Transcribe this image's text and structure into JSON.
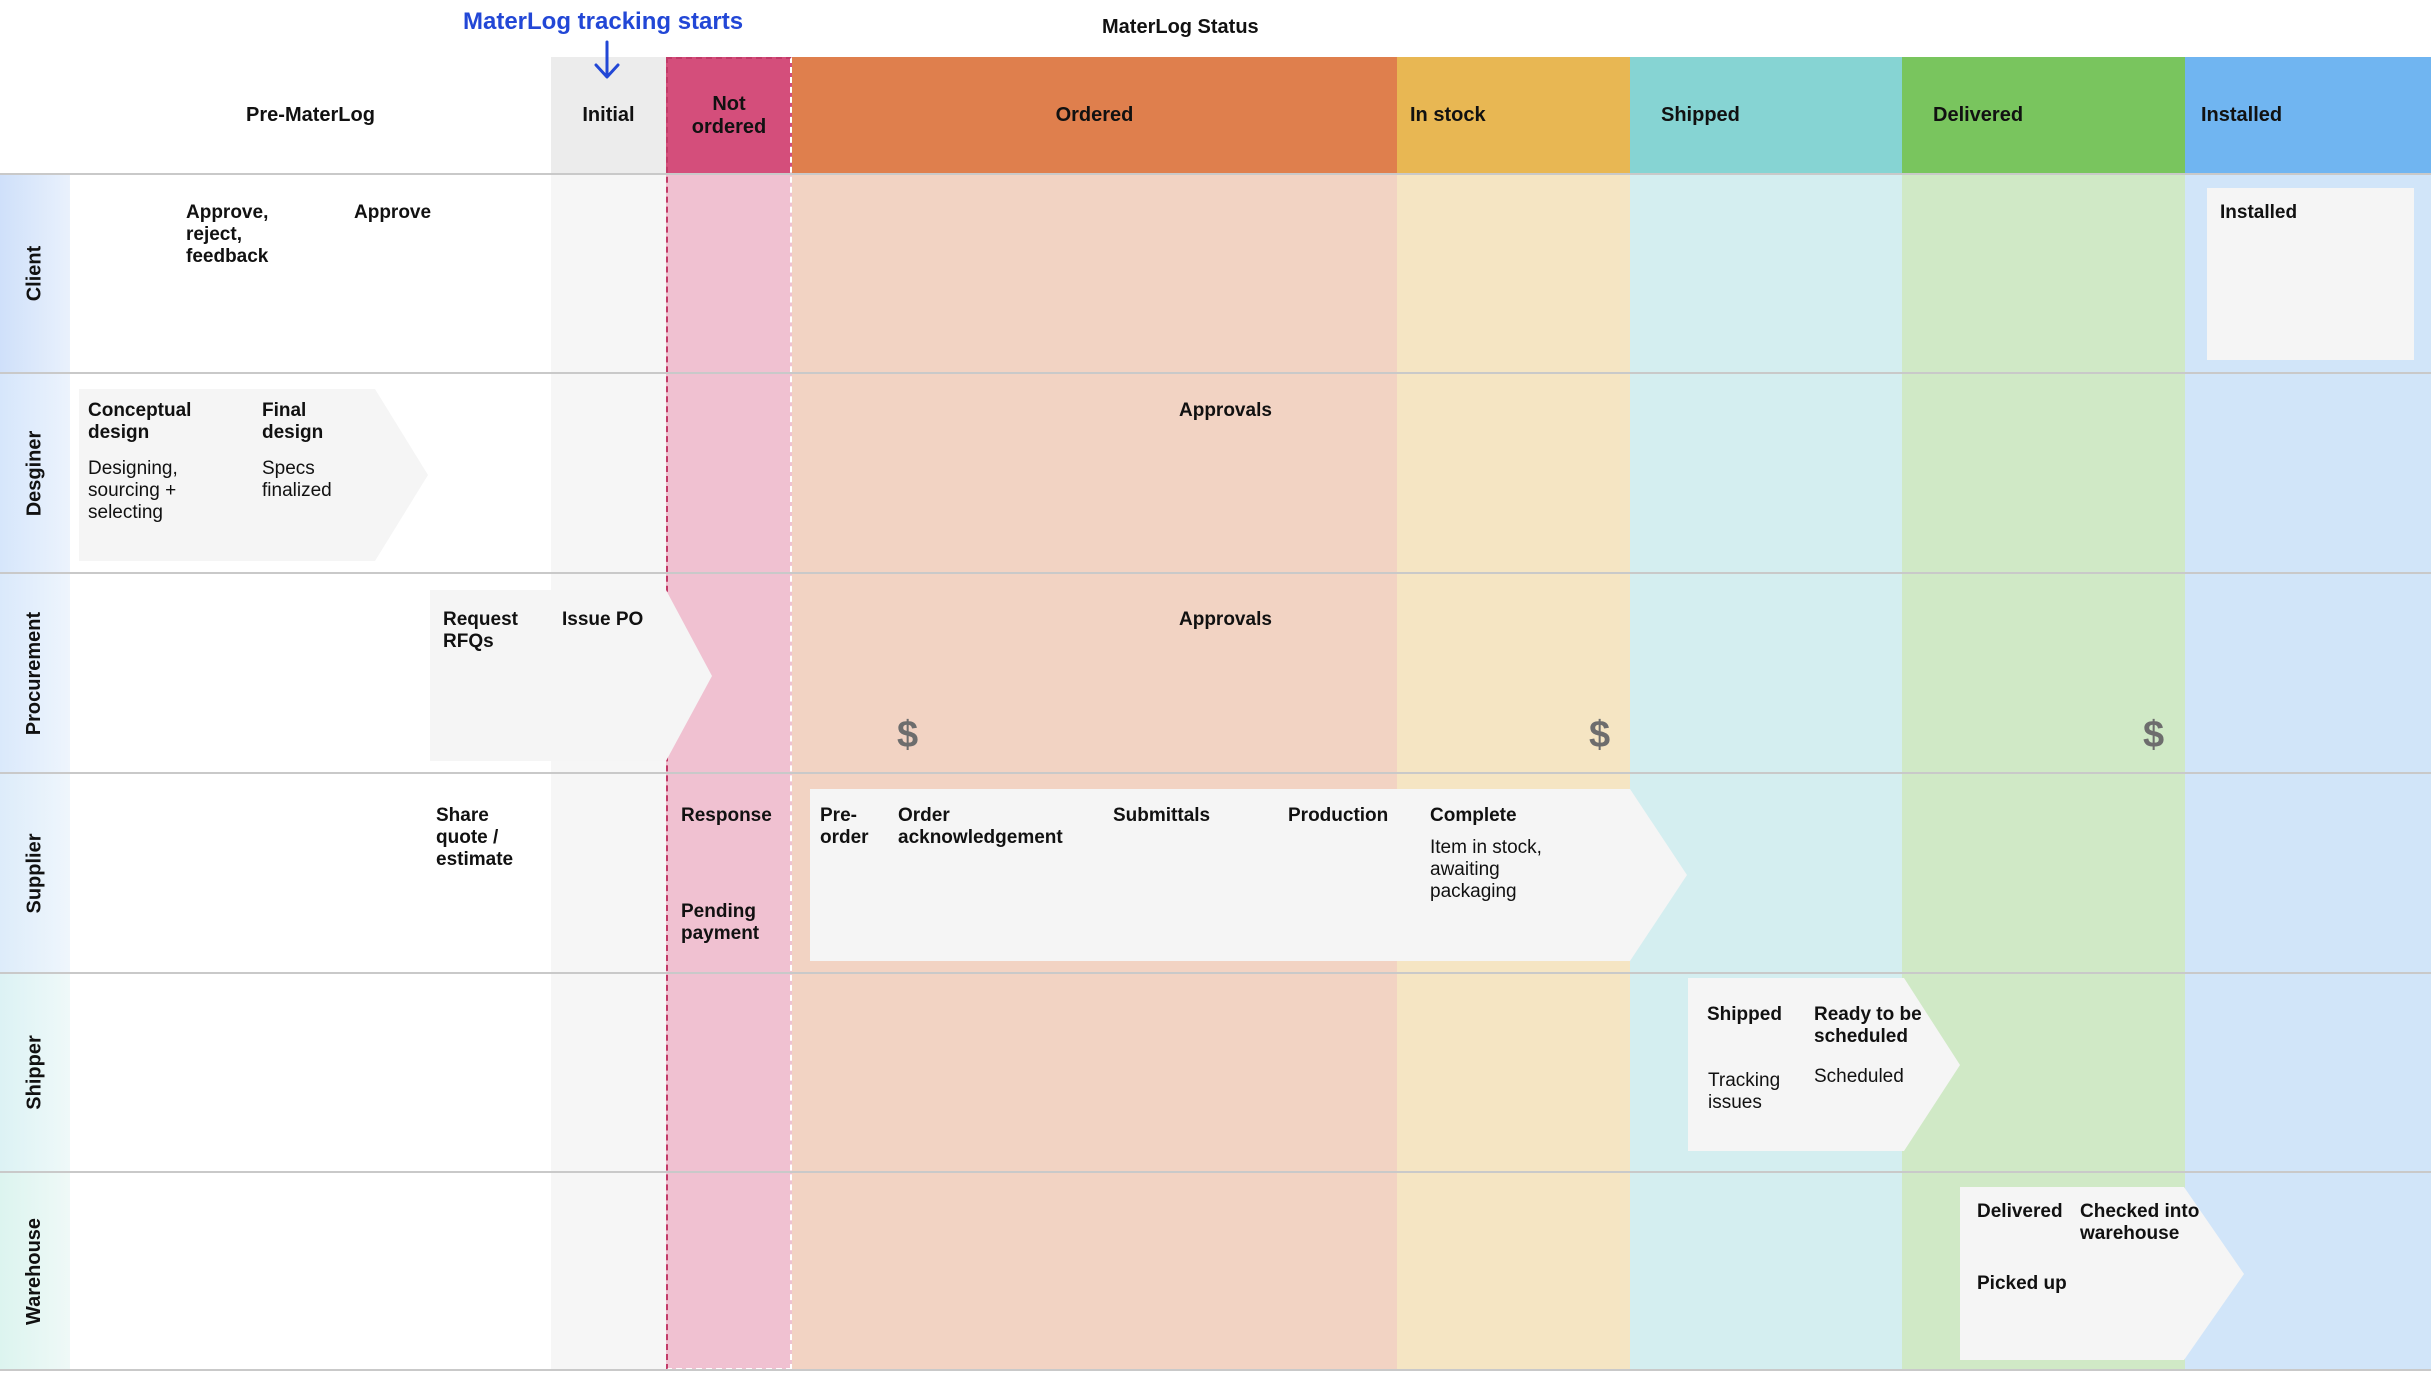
{
  "top": {
    "tracking_note": "MaterLog tracking starts",
    "status_title": "MaterLog Status"
  },
  "columns": [
    {
      "key": "pre",
      "label": "Pre-MaterLog",
      "header_color": "#ffffff",
      "body_color": "#ffffff"
    },
    {
      "key": "initial",
      "label": "Initial",
      "header_color": "#ececec",
      "body_color": "#f6f6f6"
    },
    {
      "key": "not_ordered",
      "label": "Not\nordered",
      "header_color": "#d44e7b",
      "body_color": "#f0c1d1"
    },
    {
      "key": "ordered",
      "label": "Ordered",
      "header_color": "#df7f4d",
      "body_color": "#f2d3c3"
    },
    {
      "key": "in_stock",
      "label": "In stock",
      "header_color": "#e8b753",
      "body_color": "#f5e5c3"
    },
    {
      "key": "shipped",
      "label": "Shipped",
      "header_color": "#86d4d3",
      "body_color": "#d4eef0"
    },
    {
      "key": "delivered",
      "label": "Delivered",
      "header_color": "#79c55e",
      "body_color": "#d0e9c6"
    },
    {
      "key": "installed",
      "label": "Installed",
      "header_color": "#70b5f1",
      "body_color": "#d1e5f9"
    }
  ],
  "lanes": [
    "Client",
    "Desginer",
    "Procurement",
    "Supplier",
    "Shipper",
    "Warehouse"
  ],
  "client": {
    "approve_reject": "Approve,\nreject,\nfeedback",
    "approve": "Approve",
    "installed": "Installed"
  },
  "designer": {
    "conceptual_title": "Conceptual\ndesign",
    "conceptual_sub": "Designing,\nsourcing +\nselecting",
    "final_title": "Final\ndesign",
    "final_sub": "Specs\nfinalized",
    "approvals": "Approvals"
  },
  "procurement": {
    "request_rfqs": "Request\nRFQs",
    "issue_po": "Issue PO",
    "approvals": "Approvals",
    "payment_symbol": "$"
  },
  "supplier": {
    "share_quote": "Share\nquote /\nestimate",
    "response": "Response",
    "pending_payment": "Pending\npayment",
    "pre_order": "Pre-\norder",
    "order_ack": "Order\nacknowledgement",
    "submittals": "Submittals",
    "production": "Production",
    "complete": "Complete",
    "complete_sub": "Item in stock,\nawaiting\npackaging"
  },
  "shipper": {
    "shipped": "Shipped",
    "shipped_sub": "Tracking\nissues",
    "ready": "Ready to be\nscheduled",
    "ready_sub": "Scheduled"
  },
  "warehouse": {
    "delivered": "Delivered",
    "checked_in": "Checked into\nwarehouse",
    "picked_up": "Picked up"
  }
}
